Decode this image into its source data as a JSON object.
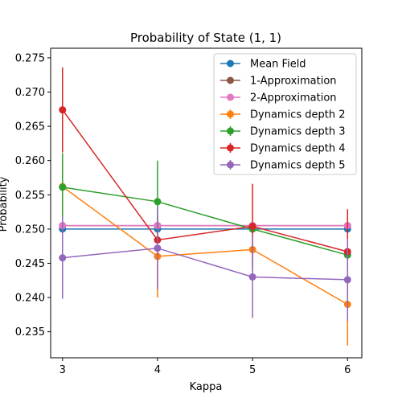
{
  "chart_data": {
    "type": "line",
    "title": "Probability of State (1, 1)",
    "xlabel": "Kappa",
    "ylabel": "Probability",
    "x": [
      3,
      4,
      5,
      6
    ],
    "xticks": [
      "3",
      "4",
      "5",
      "6"
    ],
    "xlim": [
      2.875,
      6.15
    ],
    "ylim": [
      0.2312,
      0.2764
    ],
    "yticks": [
      "0.235",
      "0.240",
      "0.245",
      "0.250",
      "0.255",
      "0.260",
      "0.265",
      "0.270",
      "0.275"
    ],
    "ytick_values": [
      0.235,
      0.24,
      0.245,
      0.25,
      0.255,
      0.26,
      0.265,
      0.27,
      0.275
    ],
    "grid": false,
    "legend_position": "top-right",
    "series": [
      {
        "name": "Mean Field",
        "color": "#1f77b4",
        "values": [
          0.25,
          0.25,
          0.25,
          0.25
        ],
        "errors": null
      },
      {
        "name": "1-Approximation",
        "color": "#8c564b",
        "values": [
          0.2505,
          0.2505,
          0.2505,
          0.2505
        ],
        "errors": null
      },
      {
        "name": "2-Approximation",
        "color": "#e377c2",
        "values": [
          0.2505,
          0.2505,
          0.2505,
          0.2505
        ],
        "errors": null
      },
      {
        "name": "Dynamics depth 2",
        "color": "#ff7f0e",
        "values": [
          0.2562,
          0.246,
          0.247,
          0.239
        ],
        "errors": [
          0.0,
          0.006,
          0.0,
          0.006
        ]
      },
      {
        "name": "Dynamics depth 3",
        "color": "#2ca02c",
        "values": [
          0.2561,
          0.254,
          0.25,
          0.2462
        ],
        "errors": [
          0.005,
          0.006,
          0.0,
          0.0
        ]
      },
      {
        "name": "Dynamics depth 4",
        "color": "#d62728",
        "values": [
          0.2674,
          0.2484,
          0.2504,
          0.2467
        ],
        "errors": [
          0.0062,
          0.0,
          0.0062,
          0.0062
        ]
      },
      {
        "name": "Dynamics depth 5",
        "color": "#9467bd",
        "values": [
          0.2458,
          0.2472,
          0.243,
          0.2426
        ],
        "errors": [
          0.006,
          0.006,
          0.006,
          0.006
        ]
      }
    ]
  }
}
